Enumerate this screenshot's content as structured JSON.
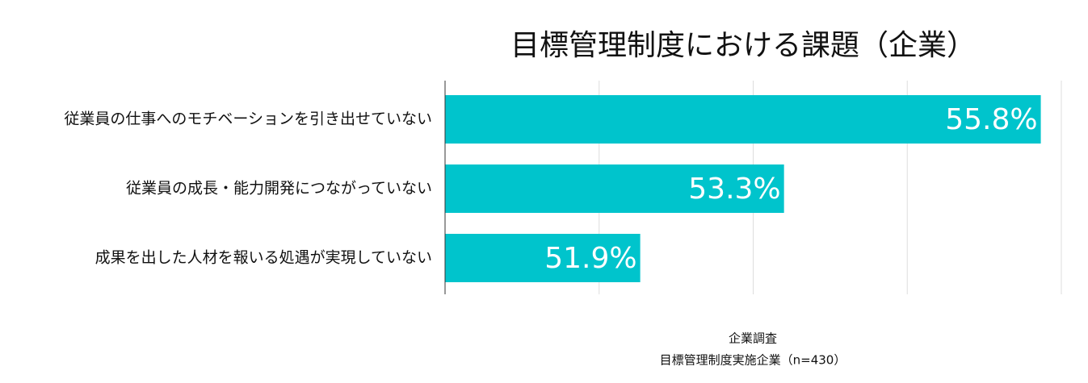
{
  "chart_data": {
    "type": "hbar",
    "title": "目標管理制度における課題（企業）",
    "categories": [
      "従業員の仕事へのモチベーションを引き出せていない",
      "従業員の成長・能力開発につながっていない",
      "成果を出した人材を報いる処遇が実現していない"
    ],
    "values": [
      55.8,
      53.3,
      51.9
    ],
    "value_labels": [
      "55.8%",
      "53.3%",
      "51.9%"
    ],
    "color": "#00c4cc",
    "xlim": [
      50,
      56
    ],
    "xticks": [
      50,
      51.5,
      53,
      54.5,
      56
    ],
    "grid": true,
    "notes": [
      "企業調査",
      "目標管理制度実施企業（n=430）"
    ]
  }
}
